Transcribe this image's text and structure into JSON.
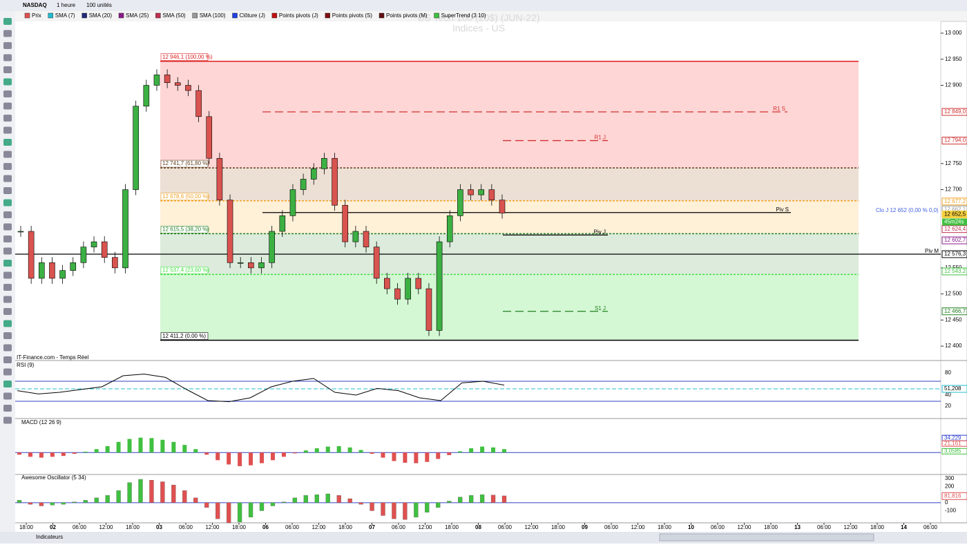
{
  "toolbar": {
    "symbol": "NASDAQ",
    "interval": "1 heure",
    "units": "100 unités"
  },
  "indicator_tabs": [
    {
      "label": "Prix",
      "color": "#e05050"
    },
    {
      "label": "SMA (7)",
      "color": "#22bcd0"
    },
    {
      "label": "SMA (20)",
      "color": "#222a7a"
    },
    {
      "label": "SMA (25)",
      "color": "#8a1a8a"
    },
    {
      "label": "SMA (50)",
      "color": "#c03050"
    },
    {
      "label": "SMA (100)",
      "color": "#999999"
    },
    {
      "label": "Clôture (J)",
      "color": "#2040e0"
    },
    {
      "label": "Points pivots (J)",
      "color": "#c01010"
    },
    {
      "label": "Points pivots (S)",
      "color": "#801010"
    },
    {
      "label": "Points pivots (M)",
      "color": "#601010"
    },
    {
      "label": "SuperTrend (3 10)",
      "color": "#40c040"
    }
  ],
  "watermark": {
    "title": "US Tech 100 (20$) (JUN-22)",
    "subtitle": "Indices - US"
  },
  "source": "IT-Finance.com - Temps Réel",
  "price_chart": {
    "ylim": [
      12375,
      13022.5
    ],
    "yticks": [
      {
        "value": 13000,
        "label": "13 000"
      },
      {
        "value": 12950,
        "label": "12 950"
      },
      {
        "value": 12900,
        "label": "12 900"
      },
      {
        "value": 12750,
        "label": "12 750"
      },
      {
        "value": 12700,
        "label": "12 700"
      },
      {
        "value": 12550,
        "label": "12 550"
      },
      {
        "value": 12500,
        "label": "12 500"
      },
      {
        "value": 12450,
        "label": "12 450"
      },
      {
        "value": 12400,
        "label": "12 400"
      }
    ],
    "tags": [
      {
        "value": 12849.0,
        "label": "12 849,0",
        "color": "#d03030"
      },
      {
        "value": 12794.0,
        "label": "12 794,0",
        "color": "#d03030"
      },
      {
        "value": 12677.2,
        "label": "12 677,2",
        "color": "#f0a020"
      },
      {
        "value": 12662.1,
        "label": "12 662,1",
        "color": "#999999"
      },
      {
        "value": 12652.5,
        "label": "12 652,5",
        "color": "#f5d040"
      },
      {
        "value": 12624.4,
        "label": "12 624,4",
        "color": "#c03050"
      },
      {
        "value": 12602.7,
        "label": "12 602,7",
        "color": "#8a1a8a"
      },
      {
        "value": 12576.3,
        "label": "12 576,3",
        "color": "#000000"
      },
      {
        "value": 12543.2,
        "label": "12 543,2",
        "color": "#40c040"
      },
      {
        "value": 12466.7,
        "label": "12 466,7",
        "color": "#208020"
      }
    ],
    "timer": "45m24s",
    "fib_levels": [
      {
        "value": 12946.1,
        "label": "12 946,1 (100,00 %)",
        "color": "#e02020"
      },
      {
        "value": 12741.7,
        "label": "12 741,7 (61,80 %)",
        "color": "#604020"
      },
      {
        "value": 12678.6,
        "label": "12 678,6 (50,00 %)",
        "color": "#f0a020"
      },
      {
        "value": 12615.5,
        "label": "12 615,5 (38,20 %)",
        "color": "#208020"
      },
      {
        "value": 12537.4,
        "label": "12 537,4 (23,60 %)",
        "color": "#40e040"
      },
      {
        "value": 12411.2,
        "label": "12 411,2 (0,00 %)",
        "color": "#000000"
      }
    ],
    "pivots": [
      {
        "value": 12849.0,
        "label": "R1 S",
        "color": "#d03030"
      },
      {
        "value": 12794.0,
        "label": "R1 J",
        "color": "#d03030"
      },
      {
        "value": 12656,
        "label": "Piv S",
        "color": "#000000"
      },
      {
        "value": 12613,
        "label": "Piv J",
        "color": "#000000"
      },
      {
        "value": 12576.3,
        "label": "Piv M",
        "color": "#000000"
      },
      {
        "value": 12466.7,
        "label": "S1 J",
        "color": "#208020"
      }
    ],
    "close_note": "Clo J 12 652 (0,00 % 0,0)",
    "closes": [
      12620,
      12530,
      12560,
      12530,
      12545,
      12560,
      12590,
      12600,
      12570,
      12550,
      12700,
      12860,
      12900,
      12920,
      12905,
      12900,
      12890,
      12840,
      12760,
      12680,
      12560,
      12560,
      12550,
      12560,
      12620,
      12650,
      12700,
      12720,
      12740,
      12760,
      12670,
      12600,
      12620,
      12590,
      12530,
      12510,
      12490,
      12530,
      12510,
      12430,
      12600,
      12650,
      12700,
      12690,
      12700,
      12680,
      12655
    ]
  },
  "rsi": {
    "title": "RSI (9)",
    "ylim": [
      0,
      100
    ],
    "yticks": [
      80,
      40,
      20
    ],
    "tag": {
      "value": 51.208,
      "label": "51,208"
    },
    "values": [
      48,
      42,
      45,
      50,
      55,
      75,
      78,
      72,
      50,
      30,
      28,
      35,
      55,
      65,
      70,
      45,
      40,
      52,
      48,
      35,
      30,
      62,
      65,
      58
    ]
  },
  "macd": {
    "title": "MACD (12 26 9)",
    "ylim": [
      -50,
      80
    ],
    "tags": [
      {
        "value": 34.229,
        "label": "34,229",
        "color": "#3040d0"
      },
      {
        "value": 21.161,
        "label": "21,161",
        "color": "#e05050"
      },
      {
        "value": 3.0585,
        "label": "3,0585",
        "color": "#40c040"
      }
    ],
    "values": [
      -5,
      -10,
      -12,
      -10,
      -8,
      -3,
      2,
      8,
      15,
      25,
      32,
      35,
      34,
      30,
      25,
      18,
      8,
      -5,
      -18,
      -28,
      -32,
      -30,
      -25,
      -18,
      -10,
      -2,
      5,
      10,
      14,
      15,
      12,
      6,
      -3,
      -12,
      -20,
      -24,
      -25,
      -22,
      -15,
      -6,
      3,
      10,
      14,
      12,
      8
    ]
  },
  "ao": {
    "title": "Awesome Oscillator (5 34)",
    "ylim": [
      -250,
      350
    ],
    "yticks": [
      300,
      200,
      0,
      -100
    ],
    "tag": {
      "value": 81.816,
      "label": "81,816"
    },
    "values": [
      30,
      -20,
      -40,
      -30,
      -20,
      10,
      30,
      60,
      90,
      150,
      250,
      290,
      280,
      260,
      220,
      150,
      60,
      -60,
      -200,
      -250,
      -240,
      -180,
      -100,
      -40,
      10,
      60,
      90,
      100,
      110,
      90,
      50,
      -20,
      -100,
      -160,
      -200,
      -210,
      -180,
      -120,
      -60,
      20,
      70,
      90,
      100,
      95,
      85
    ]
  },
  "time_labels": [
    "18:00",
    "02",
    "06:00",
    "12:00",
    "18:00",
    "03",
    "06:00",
    "12:00",
    "18:00",
    "06",
    "06:00",
    "12:00",
    "18:00",
    "07",
    "06:00",
    "12:00",
    "18:00",
    "08",
    "06:00",
    "12:00",
    "18:00",
    "09",
    "06:00",
    "12:00",
    "18:00",
    "10",
    "06:00",
    "12:00",
    "18:00",
    "13",
    "06:00",
    "12:00",
    "18:00",
    "14",
    "06:00"
  ],
  "bottom_bar": {
    "indicators": "Indicateurs"
  }
}
